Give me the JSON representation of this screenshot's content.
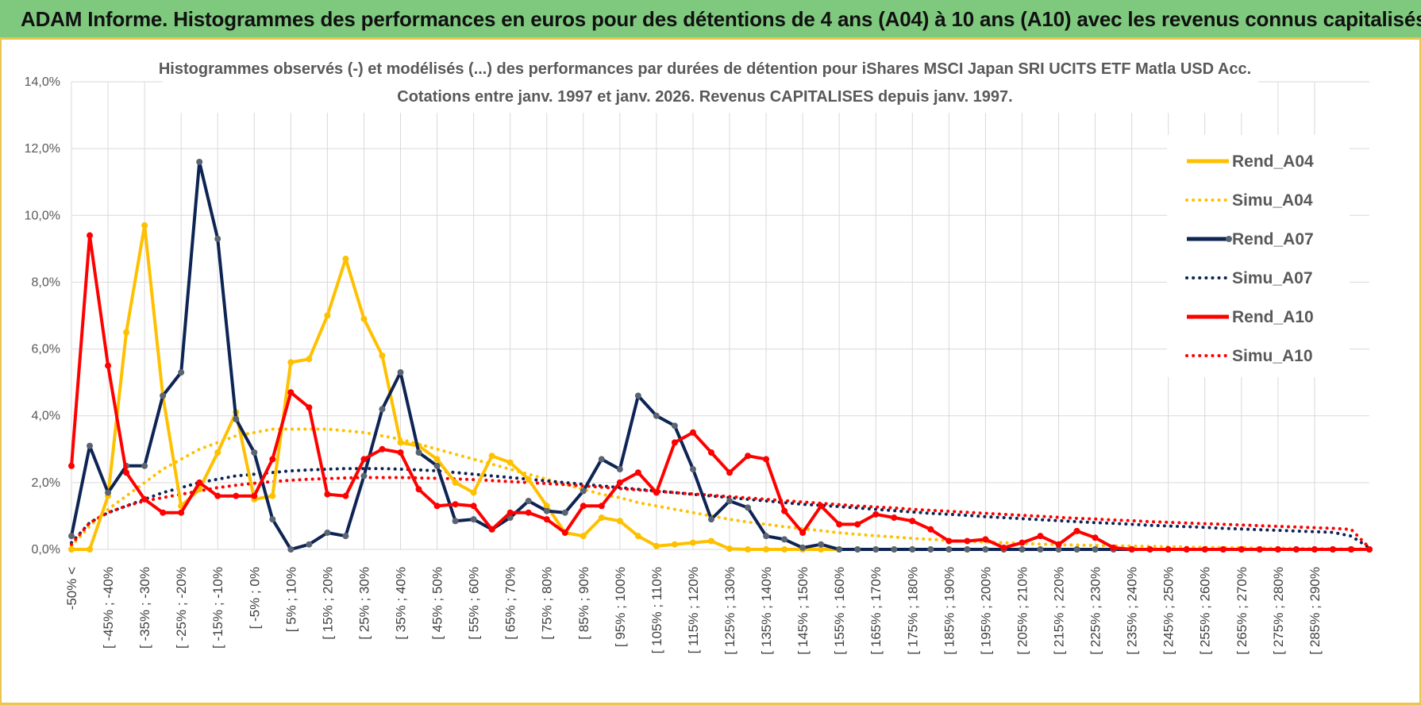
{
  "banner": {
    "title": "ADAM Informe. Histogrammes des performances en euros pour des détentions de 4 ans (A04) à 10 ans (A10) avec les revenus connus capitalisés"
  },
  "colors": {
    "a04": "#ffc000",
    "a07": "#0d2454",
    "a10": "#ff0000",
    "banner": "#7fc97f",
    "frame": "#e8c650",
    "marker_a07": "#5a6472"
  },
  "chart_data": {
    "type": "line",
    "title": "Histogrammes observés (-) et modélisés (...) des performances par durées de détention pour iShares MSCI Japan SRI UCITS ETF Matla USD Acc.",
    "subtitle": "Cotations entre janv. 1997 et janv. 2026. Revenus CAPITALISES depuis janv. 1997.",
    "ylim": [
      0,
      14
    ],
    "y_ticks": [
      0,
      2,
      4,
      6,
      8,
      10,
      12,
      14
    ],
    "y_tick_labels": [
      "0,0%",
      "2,0%",
      "4,0%",
      "6,0%",
      "8,0%",
      "10,0%",
      "12,0%",
      "14,0%"
    ],
    "x_tick_labels": [
      "-50% <",
      "[ -45% ; -40%",
      "[ -35% ; -30%",
      "[ -25% ; -20%",
      "[ -15% ; -10%",
      "[ -5% ; 0%",
      "[ 5% ; 10%",
      "[ 15% ; 20%",
      "[ 25% ; 30%",
      "[ 35% ; 40%",
      "[ 45% ; 50%",
      "[ 55% ; 60%",
      "[ 65% ; 70%",
      "[ 75% ; 80%",
      "[ 85% ; 90%",
      "[ 95% ; 100%",
      "[ 105% ; 110%",
      "[ 115% ; 120%",
      "[ 125% ; 130%",
      "[ 135% ; 140%",
      "[ 145% ; 150%",
      "[ 155% ; 160%",
      "[ 165% ; 170%",
      "[ 175% ; 180%",
      "[ 185% ; 190%",
      "[ 195% ; 200%",
      "[ 205% ; 210%",
      "[ 215% ; 220%",
      "[ 225% ; 230%",
      "[ 235% ; 240%",
      "[ 245% ; 250%",
      "[ 255% ; 260%",
      "[ 265% ; 270%",
      "[ 275% ; 280%",
      "[ 285% ; 290%"
    ],
    "grid": true,
    "legend_position": "right",
    "series": [
      {
        "name": "Rend_A04",
        "style": "solid",
        "color": "#ffc000",
        "values": [
          0,
          0,
          1.6,
          6.5,
          9.7,
          4.6,
          1.3,
          1.8,
          2.9,
          4.1,
          1.5,
          1.6,
          5.6,
          5.7,
          7.0,
          8.7,
          6.9,
          5.8,
          3.2,
          3.1,
          2.7,
          2.0,
          1.7,
          2.8,
          2.6,
          2.1,
          1.3,
          0.5,
          0.4,
          0.95,
          0.85,
          0.4,
          0.1,
          0.15,
          0.2,
          0.25,
          0.02,
          0,
          0,
          0,
          0,
          0,
          0,
          0,
          0,
          0,
          0,
          0,
          0,
          0,
          0,
          0,
          0,
          0,
          0,
          0,
          0,
          0,
          0,
          0,
          0,
          0,
          0,
          0,
          0,
          0,
          0,
          0,
          0,
          0,
          0,
          0
        ]
      },
      {
        "name": "Simu_A04",
        "style": "dotted",
        "color": "#ffc000",
        "values": [
          0.1,
          0.7,
          1.2,
          1.6,
          2.0,
          2.4,
          2.7,
          3.0,
          3.2,
          3.4,
          3.5,
          3.6,
          3.6,
          3.6,
          3.6,
          3.55,
          3.5,
          3.4,
          3.3,
          3.15,
          3.0,
          2.85,
          2.7,
          2.55,
          2.4,
          2.25,
          2.1,
          1.95,
          1.8,
          1.65,
          1.55,
          1.4,
          1.3,
          1.2,
          1.1,
          1.0,
          0.9,
          0.82,
          0.75,
          0.68,
          0.62,
          0.56,
          0.5,
          0.45,
          0.41,
          0.37,
          0.33,
          0.3,
          0.27,
          0.24,
          0.22,
          0.2,
          0.18,
          0.16,
          0.14,
          0.13,
          0.12,
          0.11,
          0.1,
          0.09,
          0.08,
          0.07,
          0.06,
          0.05,
          0.05,
          0.04,
          0.04,
          0.03,
          0.03,
          0.02,
          0.02,
          0.02
        ]
      },
      {
        "name": "Rend_A07",
        "style": "solid",
        "color": "#0d2454",
        "values": [
          0.4,
          3.1,
          1.7,
          2.5,
          2.5,
          4.6,
          5.3,
          11.6,
          9.3,
          3.9,
          2.9,
          0.9,
          0,
          0.15,
          0.5,
          0.4,
          2.2,
          4.2,
          5.3,
          2.9,
          2.5,
          0.85,
          0.9,
          0.6,
          0.95,
          1.45,
          1.15,
          1.1,
          1.75,
          2.7,
          2.4,
          4.6,
          4.0,
          3.7,
          2.4,
          0.9,
          1.45,
          1.25,
          0.4,
          0.3,
          0.05,
          0.15,
          0,
          0,
          0,
          0,
          0,
          0,
          0,
          0,
          0,
          0,
          0,
          0,
          0,
          0,
          0,
          0,
          0,
          0,
          0,
          0,
          0,
          0,
          0,
          0,
          0,
          0,
          0,
          0,
          0,
          0
        ]
      },
      {
        "name": "Simu_A07",
        "style": "dotted",
        "color": "#0d2454",
        "values": [
          0.2,
          0.8,
          1.1,
          1.3,
          1.5,
          1.7,
          1.85,
          2.0,
          2.1,
          2.2,
          2.25,
          2.3,
          2.35,
          2.38,
          2.4,
          2.42,
          2.42,
          2.42,
          2.4,
          2.38,
          2.35,
          2.3,
          2.25,
          2.2,
          2.15,
          2.1,
          2.05,
          2.0,
          1.95,
          1.9,
          1.85,
          1.8,
          1.75,
          1.7,
          1.65,
          1.6,
          1.55,
          1.5,
          1.45,
          1.4,
          1.35,
          1.32,
          1.28,
          1.24,
          1.2,
          1.16,
          1.12,
          1.08,
          1.05,
          1.02,
          0.98,
          0.95,
          0.92,
          0.89,
          0.86,
          0.83,
          0.8,
          0.78,
          0.75,
          0.72,
          0.7,
          0.68,
          0.66,
          0.63,
          0.61,
          0.59,
          0.57,
          0.55,
          0.53,
          0.51,
          0.4,
          0.05
        ]
      },
      {
        "name": "Rend_A10",
        "style": "solid",
        "color": "#ff0000",
        "values": [
          2.5,
          9.4,
          5.5,
          2.3,
          1.5,
          1.1,
          1.1,
          2.0,
          1.6,
          1.6,
          1.6,
          2.7,
          4.7,
          4.25,
          1.65,
          1.6,
          2.7,
          3.0,
          2.9,
          1.8,
          1.3,
          1.35,
          1.3,
          0.6,
          1.1,
          1.1,
          0.9,
          0.5,
          1.3,
          1.3,
          2.0,
          2.3,
          1.7,
          3.2,
          3.5,
          2.9,
          2.3,
          2.8,
          2.7,
          1.15,
          0.5,
          1.3,
          0.75,
          0.75,
          1.05,
          0.95,
          0.85,
          0.6,
          0.25,
          0.25,
          0.3,
          0.05,
          0.2,
          0.4,
          0.15,
          0.55,
          0.35,
          0.05,
          0,
          0,
          0,
          0,
          0,
          0,
          0,
          0,
          0,
          0,
          0,
          0,
          0,
          0
        ]
      },
      {
        "name": "Simu_A10",
        "style": "dotted",
        "color": "#ff0000",
        "values": [
          0.15,
          0.8,
          1.1,
          1.3,
          1.45,
          1.55,
          1.65,
          1.75,
          1.85,
          1.92,
          1.98,
          2.03,
          2.07,
          2.1,
          2.12,
          2.14,
          2.15,
          2.15,
          2.15,
          2.14,
          2.13,
          2.11,
          2.09,
          2.06,
          2.03,
          2.0,
          1.97,
          1.94,
          1.9,
          1.86,
          1.82,
          1.78,
          1.74,
          1.7,
          1.66,
          1.62,
          1.58,
          1.54,
          1.5,
          1.46,
          1.42,
          1.38,
          1.34,
          1.3,
          1.27,
          1.24,
          1.2,
          1.17,
          1.14,
          1.11,
          1.08,
          1.05,
          1.02,
          0.99,
          0.96,
          0.93,
          0.91,
          0.88,
          0.86,
          0.83,
          0.81,
          0.79,
          0.77,
          0.75,
          0.73,
          0.71,
          0.69,
          0.67,
          0.65,
          0.63,
          0.6,
          0.05
        ]
      }
    ]
  }
}
